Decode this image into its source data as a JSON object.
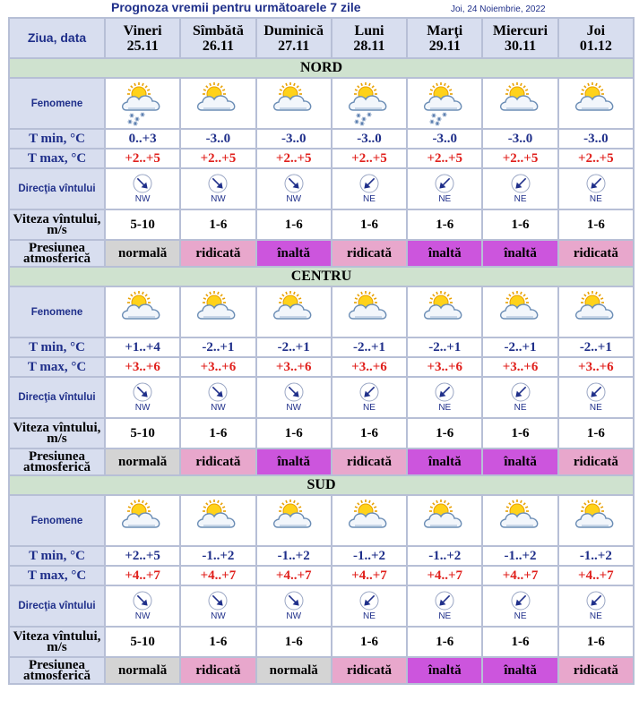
{
  "title": "Prognoza vremii pentru următoarele 7 zile",
  "date": "Joi, 24 Noiembrie, 2022",
  "header_label": "Ziua, data",
  "days": [
    {
      "name": "Vineri",
      "date": "25.11"
    },
    {
      "name": "Sîmbătă",
      "date": "26.11"
    },
    {
      "name": "Duminică",
      "date": "27.11"
    },
    {
      "name": "Luni",
      "date": "28.11"
    },
    {
      "name": "Marţi",
      "date": "29.11"
    },
    {
      "name": "Miercuri",
      "date": "30.11"
    },
    {
      "name": "Joi",
      "date": "01.12"
    }
  ],
  "row_labels": {
    "fenomene": "Fenomene",
    "tmin": "T min, °C",
    "tmax": "T max, °C",
    "directia": "Direcţia vîntului",
    "viteza": "Viteza vîntului, m/s",
    "presiunea": "Presiunea atmosferică"
  },
  "pressure_colors": {
    "normală": "#d4d4d4",
    "ridicată": "#e8a7cc",
    "înaltă": "#cc55dd"
  },
  "icons": {
    "cloudy-sun-snow": "cloud-sun-snow-icon",
    "cloudy-sun": "cloud-sun-icon"
  },
  "regions": [
    {
      "name": "NORD",
      "fenomene": [
        "cloudy-sun-snow",
        "cloudy-sun",
        "cloudy-sun",
        "cloudy-sun-snow",
        "cloudy-sun-snow",
        "cloudy-sun",
        "cloudy-sun"
      ],
      "tmin": [
        "0..+3",
        "-3..0",
        "-3..0",
        "-3..0",
        "-3..0",
        "-3..0",
        "-3..0"
      ],
      "tmax": [
        "+2..+5",
        "+2..+5",
        "+2..+5",
        "+2..+5",
        "+2..+5",
        "+2..+5",
        "+2..+5"
      ],
      "wind_dir": [
        "NW",
        "NW",
        "NW",
        "NE",
        "NE",
        "NE",
        "NE"
      ],
      "viteza": [
        "5-10",
        "1-6",
        "1-6",
        "1-6",
        "1-6",
        "1-6",
        "1-6"
      ],
      "presiunea": [
        "normală",
        "ridicată",
        "înaltă",
        "ridicată",
        "înaltă",
        "înaltă",
        "ridicată"
      ]
    },
    {
      "name": "CENTRU",
      "fenomene": [
        "cloudy-sun",
        "cloudy-sun",
        "cloudy-sun",
        "cloudy-sun",
        "cloudy-sun",
        "cloudy-sun",
        "cloudy-sun"
      ],
      "tmin": [
        "+1..+4",
        "-2..+1",
        "-2..+1",
        "-2..+1",
        "-2..+1",
        "-2..+1",
        "-2..+1"
      ],
      "tmax": [
        "+3..+6",
        "+3..+6",
        "+3..+6",
        "+3..+6",
        "+3..+6",
        "+3..+6",
        "+3..+6"
      ],
      "wind_dir": [
        "NW",
        "NW",
        "NW",
        "NE",
        "NE",
        "NE",
        "NE"
      ],
      "viteza": [
        "5-10",
        "1-6",
        "1-6",
        "1-6",
        "1-6",
        "1-6",
        "1-6"
      ],
      "presiunea": [
        "normală",
        "ridicată",
        "înaltă",
        "ridicată",
        "înaltă",
        "înaltă",
        "ridicată"
      ]
    },
    {
      "name": "SUD",
      "fenomene": [
        "cloudy-sun",
        "cloudy-sun",
        "cloudy-sun",
        "cloudy-sun",
        "cloudy-sun",
        "cloudy-sun",
        "cloudy-sun"
      ],
      "tmin": [
        "+2..+5",
        "-1..+2",
        "-1..+2",
        "-1..+2",
        "-1..+2",
        "-1..+2",
        "-1..+2"
      ],
      "tmax": [
        "+4..+7",
        "+4..+7",
        "+4..+7",
        "+4..+7",
        "+4..+7",
        "+4..+7",
        "+4..+7"
      ],
      "wind_dir": [
        "NW",
        "NW",
        "NW",
        "NE",
        "NE",
        "NE",
        "NE"
      ],
      "viteza": [
        "5-10",
        "1-6",
        "1-6",
        "1-6",
        "1-6",
        "1-6",
        "1-6"
      ],
      "presiunea": [
        "normală",
        "ridicată",
        "normală",
        "ridicată",
        "înaltă",
        "înaltă",
        "ridicată"
      ]
    }
  ]
}
